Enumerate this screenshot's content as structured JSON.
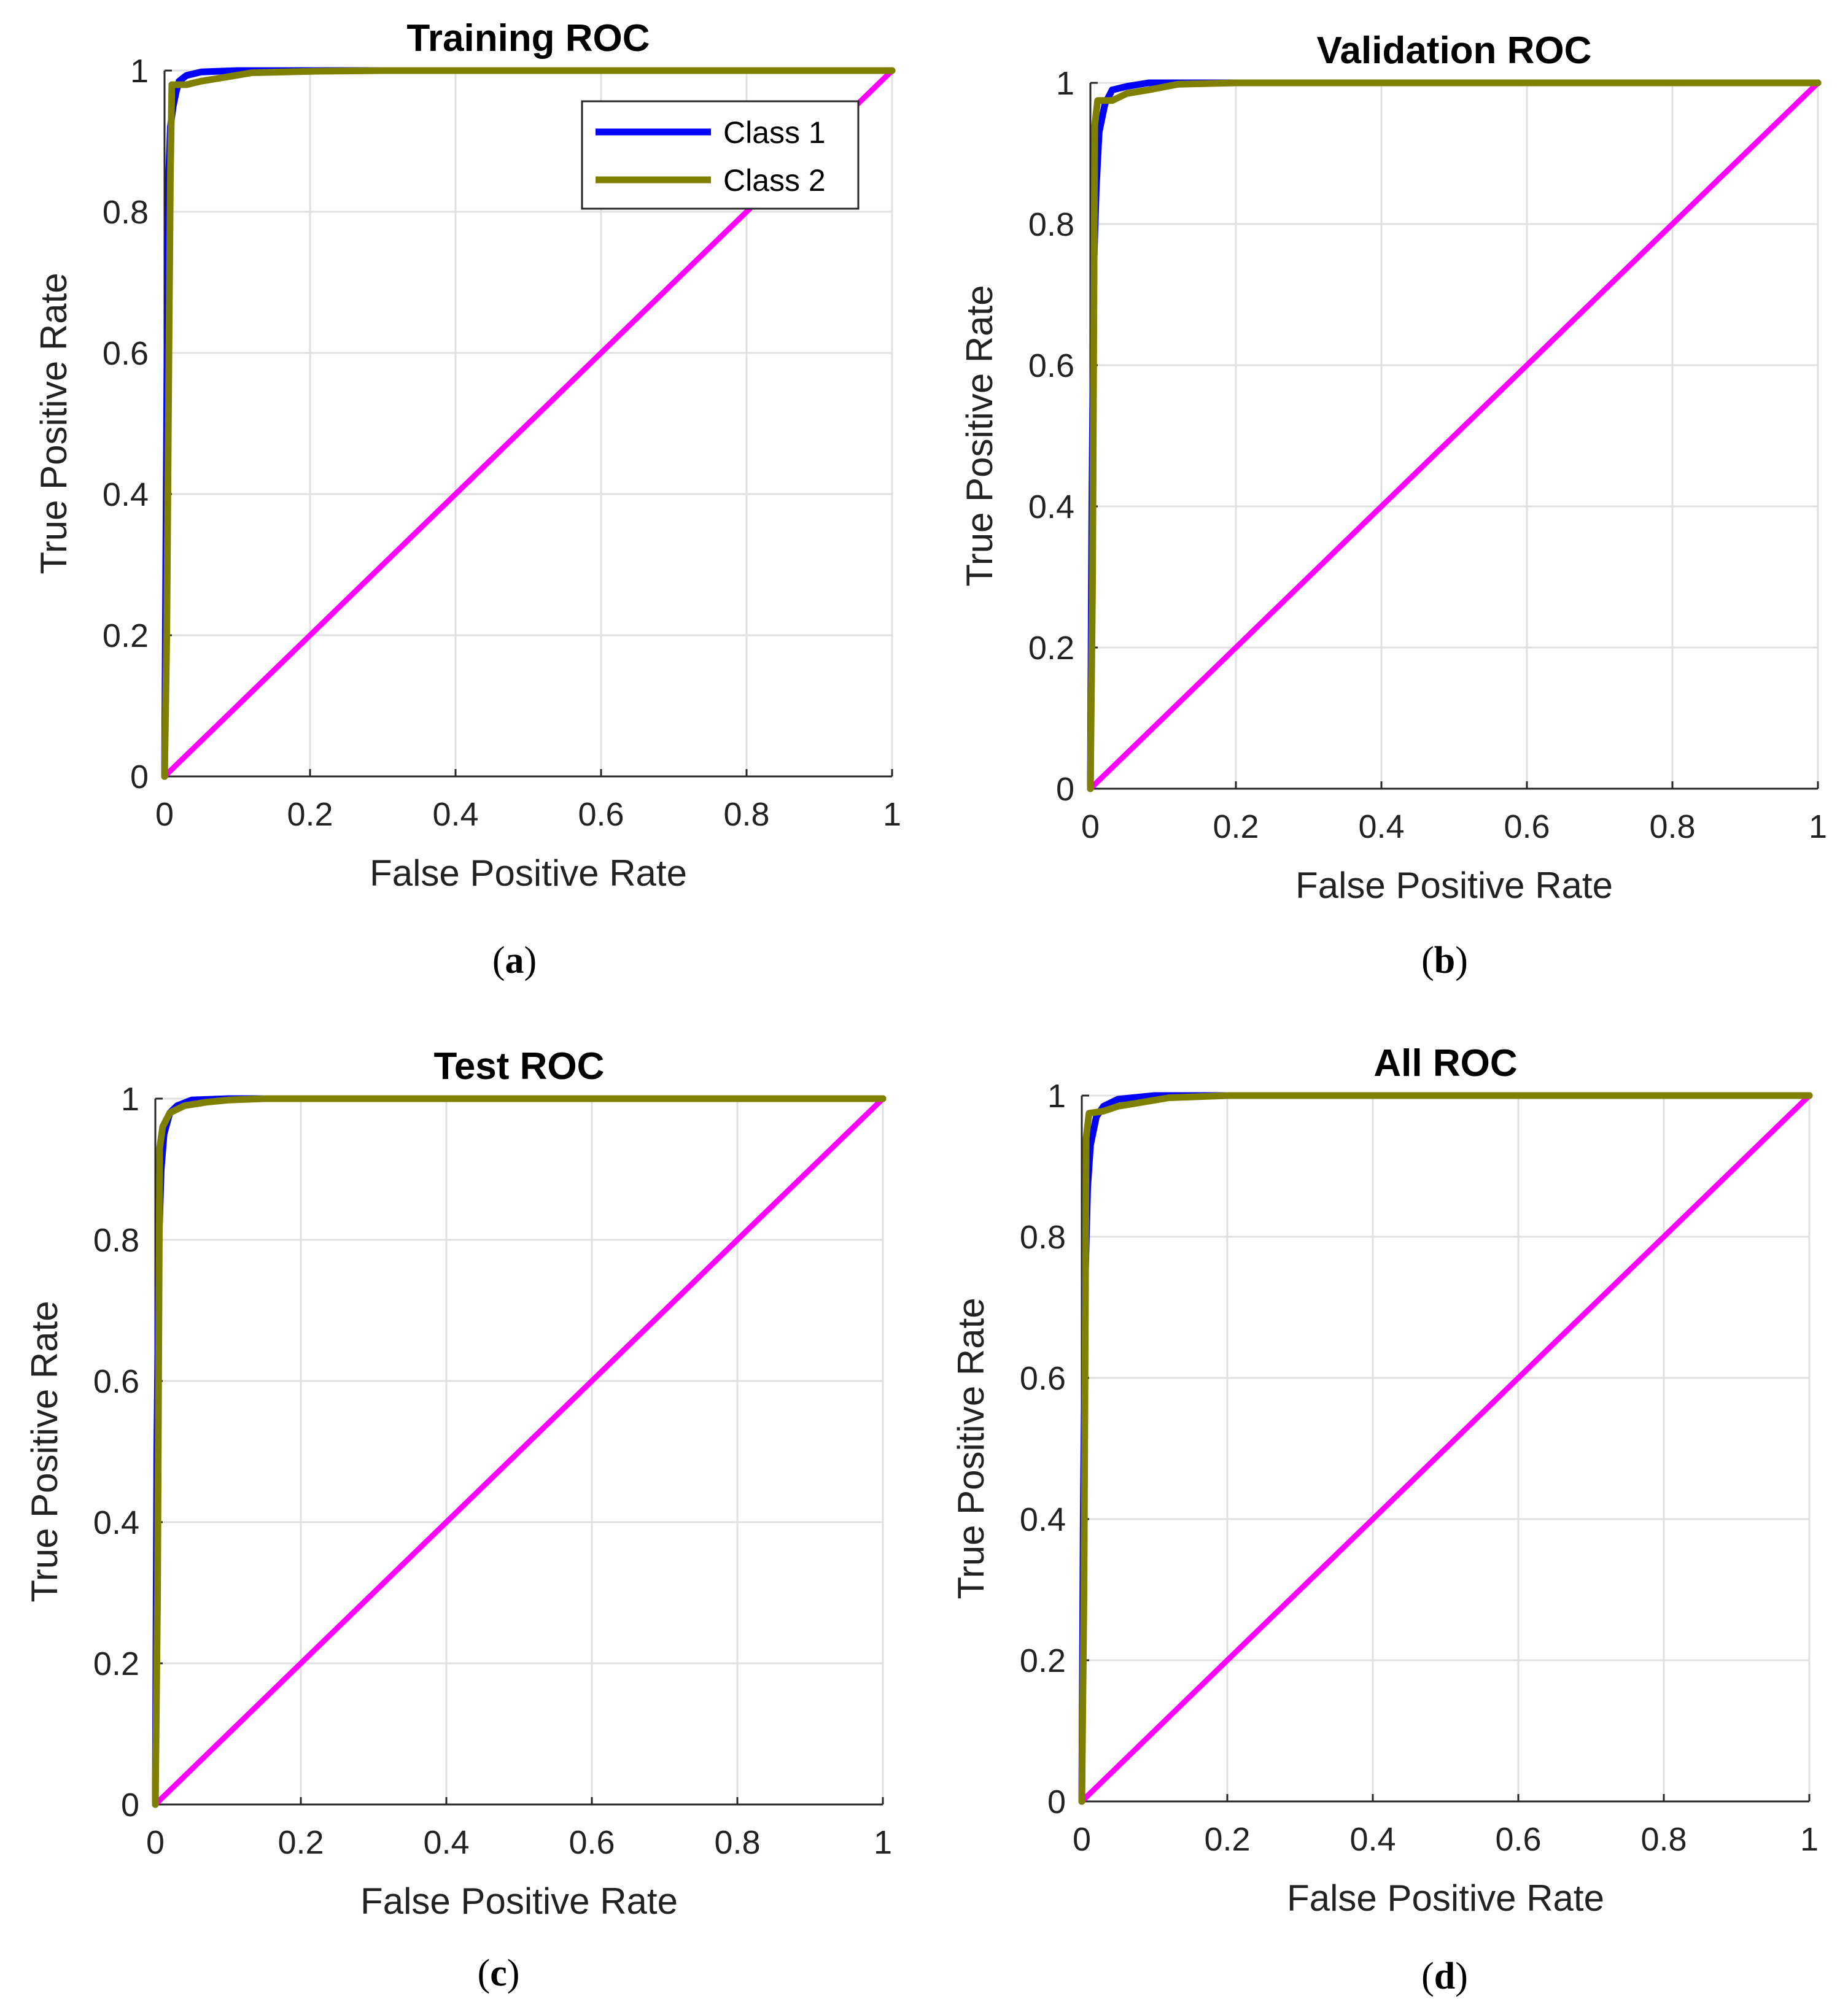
{
  "colors": {
    "class1": "#0000ff",
    "class2": "#808000",
    "diagonal": "#ff00ff",
    "grid": "#e0e0e0",
    "axis": "#262626"
  },
  "chart_data": [
    {
      "type": "line",
      "title": "Training ROC",
      "caption": {
        "open": "(",
        "letter": "a",
        "close": ")"
      },
      "xlabel": "False Positive Rate",
      "ylabel": "True Positive Rate",
      "xlim": [
        0,
        1
      ],
      "ylim": [
        0,
        1
      ],
      "xticks": [
        0,
        0.2,
        0.4,
        0.6,
        0.8,
        1
      ],
      "xtick_labels": [
        "0",
        "0.2",
        "0.4",
        "0.6",
        "0.8",
        "1"
      ],
      "yticks": [
        0,
        0.2,
        0.4,
        0.6,
        0.8,
        1
      ],
      "ytick_labels": [
        "0",
        "0.2",
        "0.4",
        "0.6",
        "0.8",
        "1"
      ],
      "grid": true,
      "legend": {
        "show": true,
        "location": "top-right",
        "entries": [
          "Class 1",
          "Class 2"
        ]
      },
      "series": [
        {
          "name": "Class 1",
          "x": [
            0,
            0.002,
            0.004,
            0.006,
            0.008,
            0.012,
            0.016,
            0.02,
            0.03,
            0.05,
            0.1,
            0.2,
            1
          ],
          "y": [
            0,
            0.35,
            0.7,
            0.86,
            0.92,
            0.95,
            0.97,
            0.985,
            0.993,
            0.998,
            1,
            1,
            1
          ]
        },
        {
          "name": "Class 2",
          "x": [
            0,
            0.003,
            0.006,
            0.008,
            0.01,
            0.03,
            0.05,
            0.08,
            0.12,
            0.2,
            0.3,
            1
          ],
          "y": [
            0,
            0.2,
            0.6,
            0.85,
            0.98,
            0.98,
            0.985,
            0.99,
            0.997,
            0.999,
            1,
            1
          ]
        },
        {
          "name": "Diagonal",
          "x": [
            0,
            1
          ],
          "y": [
            0,
            1
          ]
        }
      ]
    },
    {
      "type": "line",
      "title": "Validation ROC",
      "caption": {
        "open": "(",
        "letter": "b",
        "close": ")"
      },
      "xlabel": "False Positive Rate",
      "ylabel": "True Positive Rate",
      "xlim": [
        0,
        1
      ],
      "ylim": [
        0,
        1
      ],
      "xticks": [
        0,
        0.2,
        0.4,
        0.6,
        0.8,
        1
      ],
      "xtick_labels": [
        "0",
        "0.2",
        "0.4",
        "0.6",
        "0.8",
        "1"
      ],
      "yticks": [
        0,
        0.2,
        0.4,
        0.6,
        0.8,
        1
      ],
      "ytick_labels": [
        "0",
        "0.2",
        "0.4",
        "0.6",
        "0.8",
        "1"
      ],
      "grid": true,
      "legend": {
        "show": false
      },
      "series": [
        {
          "name": "Class 1",
          "x": [
            0,
            0.002,
            0.005,
            0.008,
            0.012,
            0.02,
            0.03,
            0.05,
            0.08,
            0.15,
            1
          ],
          "y": [
            0,
            0.4,
            0.75,
            0.85,
            0.93,
            0.97,
            0.99,
            0.995,
            1,
            1,
            1
          ]
        },
        {
          "name": "Class 2",
          "x": [
            0,
            0.003,
            0.006,
            0.01,
            0.03,
            0.05,
            0.08,
            0.12,
            0.2,
            1
          ],
          "y": [
            0,
            0.3,
            0.94,
            0.975,
            0.975,
            0.985,
            0.99,
            0.998,
            1,
            1
          ]
        },
        {
          "name": "Diagonal",
          "x": [
            0,
            1
          ],
          "y": [
            0,
            1
          ]
        }
      ]
    },
    {
      "type": "line",
      "title": "Test ROC",
      "caption": {
        "open": "(",
        "letter": "c",
        "close": ")"
      },
      "xlabel": "False Positive Rate",
      "ylabel": "True Positive Rate",
      "xlim": [
        0,
        1
      ],
      "ylim": [
        0,
        1
      ],
      "xticks": [
        0,
        0.2,
        0.4,
        0.6,
        0.8,
        1
      ],
      "xtick_labels": [
        "0",
        "0.2",
        "0.4",
        "0.6",
        "0.8",
        "1"
      ],
      "yticks": [
        0,
        0.2,
        0.4,
        0.6,
        0.8,
        1
      ],
      "ytick_labels": [
        "0",
        "0.2",
        "0.4",
        "0.6",
        "0.8",
        "1"
      ],
      "grid": true,
      "legend": {
        "show": false
      },
      "series": [
        {
          "name": "Class 1",
          "x": [
            0,
            0.002,
            0.005,
            0.008,
            0.012,
            0.02,
            0.03,
            0.05,
            0.1,
            1
          ],
          "y": [
            0,
            0.5,
            0.8,
            0.9,
            0.95,
            0.98,
            0.99,
            0.998,
            1,
            1
          ]
        },
        {
          "name": "Class 2",
          "x": [
            0,
            0.003,
            0.006,
            0.01,
            0.02,
            0.04,
            0.07,
            0.1,
            0.15,
            1
          ],
          "y": [
            0,
            0.3,
            0.93,
            0.96,
            0.98,
            0.99,
            0.995,
            0.998,
            1,
            1
          ]
        },
        {
          "name": "Diagonal",
          "x": [
            0,
            1
          ],
          "y": [
            0,
            1
          ]
        }
      ]
    },
    {
      "type": "line",
      "title": "All ROC",
      "caption": {
        "open": "(",
        "letter": "d",
        "close": ")"
      },
      "xlabel": "False Positive Rate",
      "ylabel": "True Positive Rate",
      "xlim": [
        0,
        1
      ],
      "ylim": [
        0,
        1
      ],
      "xticks": [
        0,
        0.2,
        0.4,
        0.6,
        0.8,
        1
      ],
      "xtick_labels": [
        "0",
        "0.2",
        "0.4",
        "0.6",
        "0.8",
        "1"
      ],
      "yticks": [
        0,
        0.2,
        0.4,
        0.6,
        0.8,
        1
      ],
      "ytick_labels": [
        "0",
        "0.2",
        "0.4",
        "0.6",
        "0.8",
        "1"
      ],
      "grid": true,
      "legend": {
        "show": false
      },
      "series": [
        {
          "name": "Class 1",
          "x": [
            0,
            0.002,
            0.005,
            0.008,
            0.012,
            0.02,
            0.03,
            0.05,
            0.1,
            0.2,
            1
          ],
          "y": [
            0,
            0.4,
            0.75,
            0.87,
            0.93,
            0.97,
            0.985,
            0.995,
            1,
            1,
            1
          ]
        },
        {
          "name": "Class 2",
          "x": [
            0,
            0.003,
            0.006,
            0.01,
            0.03,
            0.05,
            0.08,
            0.12,
            0.2,
            1
          ],
          "y": [
            0,
            0.3,
            0.94,
            0.975,
            0.978,
            0.985,
            0.99,
            0.997,
            1,
            1
          ]
        },
        {
          "name": "Diagonal",
          "x": [
            0,
            1
          ],
          "y": [
            0,
            1
          ]
        }
      ]
    }
  ]
}
